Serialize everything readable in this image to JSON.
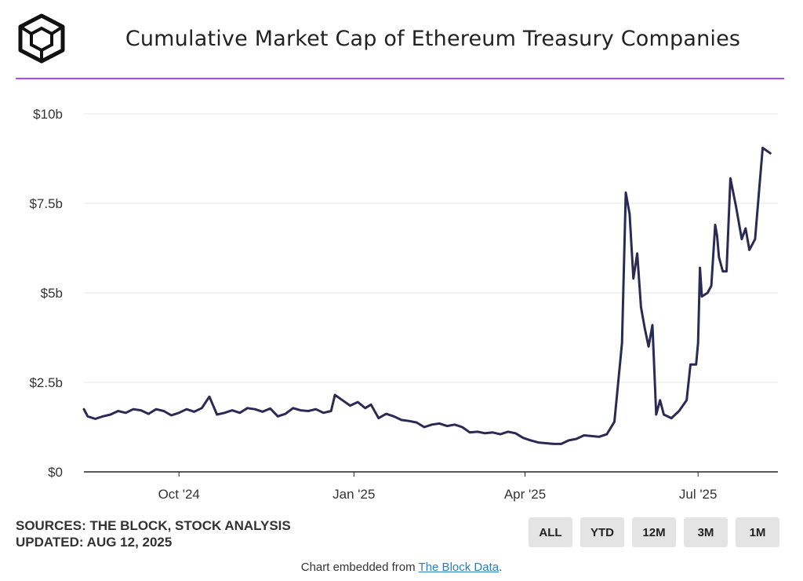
{
  "title": "Cumulative Market Cap of Ethereum Treasury Companies",
  "footer": {
    "sources": "SOURCES: THE BLOCK, STOCK ANALYSIS",
    "updated": "UPDATED: AUG 12, 2025",
    "embed_prefix": "Chart embedded from ",
    "embed_link": "The Block Data",
    "embed_suffix": "."
  },
  "range_buttons": [
    "ALL",
    "YTD",
    "12M",
    "3M",
    "1M"
  ],
  "colors": {
    "line": "#2b2a55",
    "accent": "#a64bf4",
    "grid": "#e6e6e6",
    "axis": "#222222"
  },
  "chart_data": {
    "type": "line",
    "title": "Cumulative Market Cap of Ethereum Treasury Companies",
    "xlabel": "",
    "ylabel": "",
    "x_tick_labels": [
      "Oct '24",
      "Jan '25",
      "Apr '25",
      "Jul '25"
    ],
    "x_tick_dates": [
      "2024-10-01",
      "2025-01-01",
      "2025-04-01",
      "2025-07-01"
    ],
    "y_tick_labels": [
      "$0",
      "$2.5b",
      "$5b",
      "$7.5b",
      "$10b"
    ],
    "y_tick_values": [
      0,
      2.5,
      5,
      7.5,
      10
    ],
    "ylim": [
      0,
      10
    ],
    "xlim": [
      "2024-08-12",
      "2025-08-12"
    ],
    "grid": true,
    "series": [
      {
        "points": [
          [
            "2024-08-12",
            1.75
          ],
          [
            "2024-08-14",
            1.55
          ],
          [
            "2024-08-18",
            1.48
          ],
          [
            "2024-08-22",
            1.55
          ],
          [
            "2024-08-26",
            1.6
          ],
          [
            "2024-08-30",
            1.7
          ],
          [
            "2024-09-03",
            1.65
          ],
          [
            "2024-09-07",
            1.75
          ],
          [
            "2024-09-11",
            1.72
          ],
          [
            "2024-09-15",
            1.62
          ],
          [
            "2024-09-19",
            1.75
          ],
          [
            "2024-09-23",
            1.7
          ],
          [
            "2024-09-27",
            1.58
          ],
          [
            "2024-10-01",
            1.65
          ],
          [
            "2024-10-05",
            1.75
          ],
          [
            "2024-10-09",
            1.68
          ],
          [
            "2024-10-13",
            1.78
          ],
          [
            "2024-10-17",
            2.1
          ],
          [
            "2024-10-21",
            1.6
          ],
          [
            "2024-10-25",
            1.65
          ],
          [
            "2024-10-29",
            1.72
          ],
          [
            "2024-11-02",
            1.65
          ],
          [
            "2024-11-06",
            1.78
          ],
          [
            "2024-11-10",
            1.75
          ],
          [
            "2024-11-14",
            1.68
          ],
          [
            "2024-11-18",
            1.77
          ],
          [
            "2024-11-22",
            1.55
          ],
          [
            "2024-11-26",
            1.62
          ],
          [
            "2024-11-30",
            1.78
          ],
          [
            "2024-12-04",
            1.72
          ],
          [
            "2024-12-08",
            1.7
          ],
          [
            "2024-12-12",
            1.75
          ],
          [
            "2024-12-16",
            1.65
          ],
          [
            "2024-12-20",
            1.7
          ],
          [
            "2024-12-22",
            2.15
          ],
          [
            "2024-12-26",
            2.0
          ],
          [
            "2024-12-30",
            1.85
          ],
          [
            "2025-01-03",
            1.95
          ],
          [
            "2025-01-07",
            1.78
          ],
          [
            "2025-01-10",
            1.88
          ],
          [
            "2025-01-14",
            1.5
          ],
          [
            "2025-01-18",
            1.62
          ],
          [
            "2025-01-22",
            1.55
          ],
          [
            "2025-01-26",
            1.45
          ],
          [
            "2025-01-30",
            1.42
          ],
          [
            "2025-02-03",
            1.38
          ],
          [
            "2025-02-07",
            1.25
          ],
          [
            "2025-02-11",
            1.32
          ],
          [
            "2025-02-15",
            1.35
          ],
          [
            "2025-02-19",
            1.28
          ],
          [
            "2025-02-23",
            1.32
          ],
          [
            "2025-02-27",
            1.25
          ],
          [
            "2025-03-03",
            1.1
          ],
          [
            "2025-03-07",
            1.12
          ],
          [
            "2025-03-11",
            1.08
          ],
          [
            "2025-03-15",
            1.1
          ],
          [
            "2025-03-19",
            1.05
          ],
          [
            "2025-03-23",
            1.12
          ],
          [
            "2025-03-27",
            1.08
          ],
          [
            "2025-03-31",
            0.95
          ],
          [
            "2025-04-04",
            0.88
          ],
          [
            "2025-04-08",
            0.82
          ],
          [
            "2025-04-12",
            0.8
          ],
          [
            "2025-04-16",
            0.78
          ],
          [
            "2025-04-20",
            0.78
          ],
          [
            "2025-04-24",
            0.88
          ],
          [
            "2025-04-28",
            0.92
          ],
          [
            "2025-05-02",
            1.02
          ],
          [
            "2025-05-06",
            1.0
          ],
          [
            "2025-05-10",
            0.98
          ],
          [
            "2025-05-14",
            1.05
          ],
          [
            "2025-05-18",
            1.4
          ],
          [
            "2025-05-22",
            3.6
          ],
          [
            "2025-05-24",
            7.8
          ],
          [
            "2025-05-26",
            7.2
          ],
          [
            "2025-05-28",
            5.4
          ],
          [
            "2025-05-30",
            6.1
          ],
          [
            "2025-06-01",
            4.6
          ],
          [
            "2025-06-03",
            4.0
          ],
          [
            "2025-06-05",
            3.5
          ],
          [
            "2025-06-07",
            4.1
          ],
          [
            "2025-06-09",
            1.6
          ],
          [
            "2025-06-11",
            2.0
          ],
          [
            "2025-06-13",
            1.6
          ],
          [
            "2025-06-17",
            1.5
          ],
          [
            "2025-06-21",
            1.7
          ],
          [
            "2025-06-25",
            2.0
          ],
          [
            "2025-06-27",
            3.0
          ],
          [
            "2025-06-30",
            3.0
          ],
          [
            "2025-07-01",
            3.6
          ],
          [
            "2025-07-02",
            5.7
          ],
          [
            "2025-07-03",
            4.9
          ],
          [
            "2025-07-06",
            5.0
          ],
          [
            "2025-07-08",
            5.2
          ],
          [
            "2025-07-10",
            6.9
          ],
          [
            "2025-07-11",
            6.6
          ],
          [
            "2025-07-12",
            6.0
          ],
          [
            "2025-07-14",
            5.6
          ],
          [
            "2025-07-16",
            5.6
          ],
          [
            "2025-07-18",
            8.2
          ],
          [
            "2025-07-21",
            7.4
          ],
          [
            "2025-07-24",
            6.5
          ],
          [
            "2025-07-26",
            6.8
          ],
          [
            "2025-07-28",
            6.2
          ],
          [
            "2025-07-31",
            6.5
          ],
          [
            "2025-08-02",
            7.8
          ],
          [
            "2025-08-04",
            9.05
          ],
          [
            "2025-08-08",
            8.9
          ]
        ]
      }
    ]
  }
}
